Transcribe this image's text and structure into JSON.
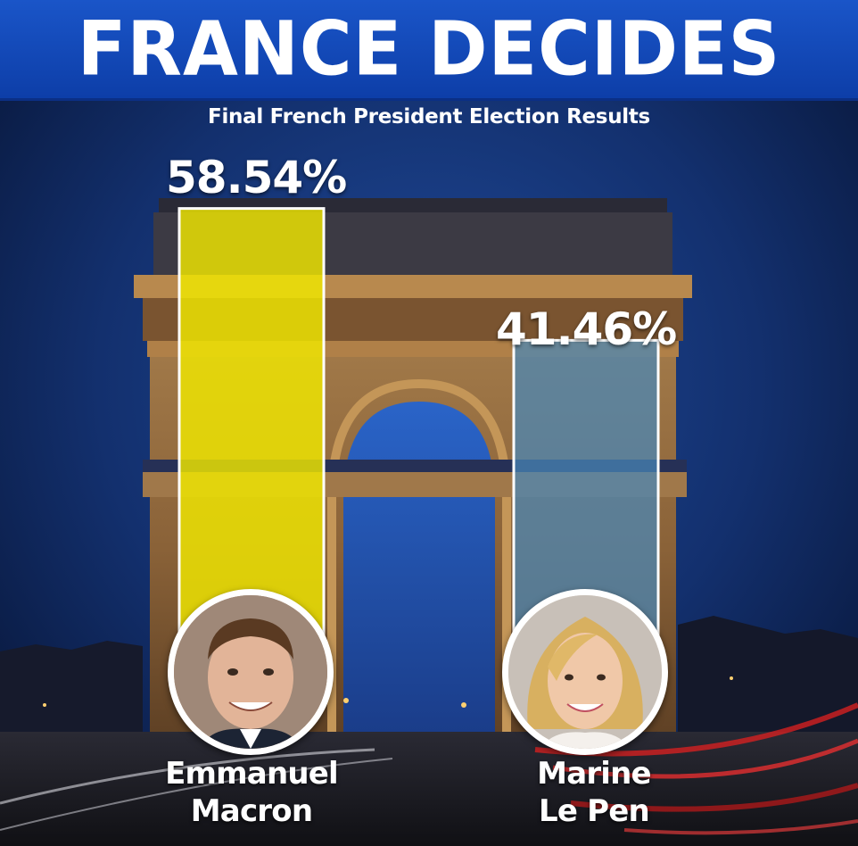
{
  "header": {
    "title": "FRANCE DECIDES"
  },
  "colors": {
    "header_bg": "#1548b8",
    "macron_bar": "#f0e800",
    "le_pen_bar": "#4a88b8",
    "bar_border": "#ffffff"
  },
  "chart_data": {
    "type": "bar",
    "title": "Final French President Election Results",
    "categories": [
      "Emmanuel Macron",
      "Marine Le Pen"
    ],
    "values": [
      58.54,
      41.46
    ],
    "value_labels": [
      "58.54%",
      "41.46%"
    ],
    "unit": "%",
    "series": [
      {
        "name": "Emmanuel Macron",
        "value": 58.54,
        "color": "#f0e800"
      },
      {
        "name": "Marine Le Pen",
        "value": 41.46,
        "color": "#4a88b8"
      }
    ]
  },
  "candidates": [
    {
      "first": "Emmanuel",
      "last": "Macron",
      "avatar_icon": "man-portrait-icon"
    },
    {
      "first": "Marine",
      "last": "Le Pen",
      "avatar_icon": "woman-portrait-icon"
    }
  ]
}
